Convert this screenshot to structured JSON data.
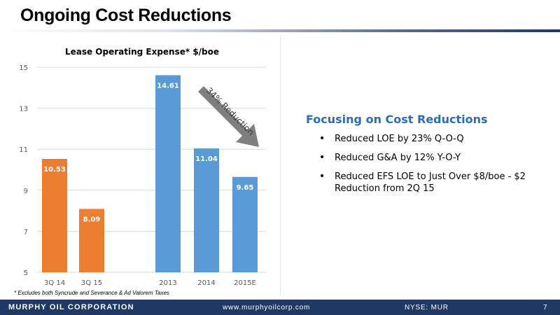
{
  "slide": {
    "title": "Ongoing Cost Reductions",
    "footnote": "* Excludes both Syncrude and Severance & Ad Valorem Taxes"
  },
  "chart_data": {
    "type": "bar",
    "title": "Lease Operating Expense*   $/boe",
    "categories": [
      "3Q 14",
      "3Q 15",
      "2013",
      "2014",
      "2015E"
    ],
    "values": [
      10.53,
      8.09,
      14.61,
      11.04,
      9.65
    ],
    "data_labels": [
      "10.53",
      "8.09",
      "14.61",
      "11.04",
      "9.65"
    ],
    "bar_colors": [
      "#ed7d31",
      "#ed7d31",
      "#5b9bd5",
      "#5b9bd5",
      "#5b9bd5"
    ],
    "ylim": [
      5,
      15
    ],
    "yticks": [
      "5",
      "7",
      "9",
      "11",
      "13",
      "15"
    ],
    "grid": true,
    "annotation": "34% Reduction",
    "xlabel": "",
    "ylabel": ""
  },
  "focus": {
    "heading": "Focusing on Cost Reductions",
    "bullets": [
      "Reduced LOE by 23% Q-O-Q",
      "Reduced G&A by 12% Y-O-Y",
      "Reduced EFS LOE to Just Over $8/boe - $2 Reduction from 2Q 15"
    ]
  },
  "footer": {
    "company": "MURPHY OIL CORPORATION",
    "url": "www.murphyoilcorp.com",
    "ticker": "NYSE: MUR",
    "page": "7"
  },
  "colors": {
    "accent": "#2e6db4",
    "footer": "#1f3864",
    "orange": "#ed7d31",
    "blue": "#5b9bd5",
    "arrow": "#7f7f7f"
  }
}
